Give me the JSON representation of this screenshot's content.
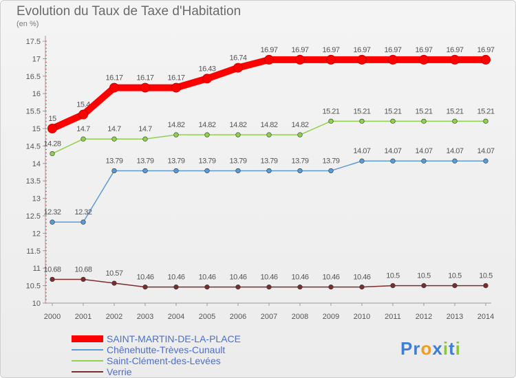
{
  "chart_data": {
    "type": "line",
    "title": "Evolution du Taux de Taxe d'Habitation",
    "subtitle": "(en %)",
    "x": [
      "2000",
      "2001",
      "2002",
      "2003",
      "2004",
      "2005",
      "2006",
      "2007",
      "2008",
      "2009",
      "2010",
      "2011",
      "2012",
      "2013",
      "2014"
    ],
    "ylim": [
      10,
      17.5
    ],
    "yticks": [
      "10",
      "10.5",
      "11",
      "11.5",
      "12",
      "12.5",
      "13",
      "13.5",
      "14",
      "14.5",
      "15",
      "15.5",
      "16",
      "16.5",
      "17",
      "17.5"
    ],
    "grid": false,
    "legend": "bottom-left",
    "series": [
      {
        "name": "SAINT-MARTIN-DE-LA-PLACE",
        "color": "#ff0000",
        "values": [
          15,
          15.4,
          16.17,
          16.17,
          16.17,
          16.43,
          16.74,
          16.97,
          16.97,
          16.97,
          16.97,
          16.97,
          16.97,
          16.97,
          16.97
        ],
        "labels": [
          "15",
          "15.4",
          "16.17",
          "16.17",
          "16.17",
          "16.43",
          "16.74",
          "16.97",
          "16.97",
          "16.97",
          "16.97",
          "16.97",
          "16.97",
          "16.97",
          "16.97"
        ]
      },
      {
        "name": "Chênehutte-Trèves-Cunault",
        "color": "#5b9bd5",
        "values": [
          12.32,
          12.32,
          13.79,
          13.79,
          13.79,
          13.79,
          13.79,
          13.79,
          13.79,
          13.79,
          14.07,
          14.07,
          14.07,
          14.07,
          14.07
        ],
        "labels": [
          "12.32",
          "12.32",
          "13.79",
          "13.79",
          "13.79",
          "13.79",
          "13.79",
          "13.79",
          "13.79",
          "13.79",
          "14.07",
          "14.07",
          "14.07",
          "14.07",
          "14.07"
        ]
      },
      {
        "name": "Saint-Clément-des-Levées",
        "color": "#8fd14f",
        "values": [
          14.28,
          14.7,
          14.7,
          14.7,
          14.82,
          14.82,
          14.82,
          14.82,
          14.82,
          15.21,
          15.21,
          15.21,
          15.21,
          15.21,
          15.21
        ],
        "labels": [
          "14.28",
          "14.7",
          "14.7",
          "14.7",
          "14.82",
          "14.82",
          "14.82",
          "14.82",
          "14.82",
          "15.21",
          "15.21",
          "15.21",
          "15.21",
          "15.21",
          "15.21"
        ]
      },
      {
        "name": "Verrie",
        "color": "#7b2c2c",
        "values": [
          10.68,
          10.68,
          10.57,
          10.46,
          10.46,
          10.46,
          10.46,
          10.46,
          10.46,
          10.46,
          10.46,
          10.5,
          10.5,
          10.5,
          10.5
        ],
        "labels": [
          "10.68",
          "10.68",
          "10.57",
          "10.46",
          "10.46",
          "10.46",
          "10.46",
          "10.46",
          "10.46",
          "10.46",
          "10.46",
          "10.5",
          "10.5",
          "10.5",
          "10.5"
        ]
      }
    ]
  },
  "logo": {
    "parts": [
      "Pr",
      "o",
      "x",
      "i",
      "t",
      "i"
    ],
    "colors": [
      "#3e7fd6",
      "#f29b1f",
      "#3e7fd6",
      "#8bc53f",
      "#3e7fd6",
      "#8bc53f"
    ]
  }
}
